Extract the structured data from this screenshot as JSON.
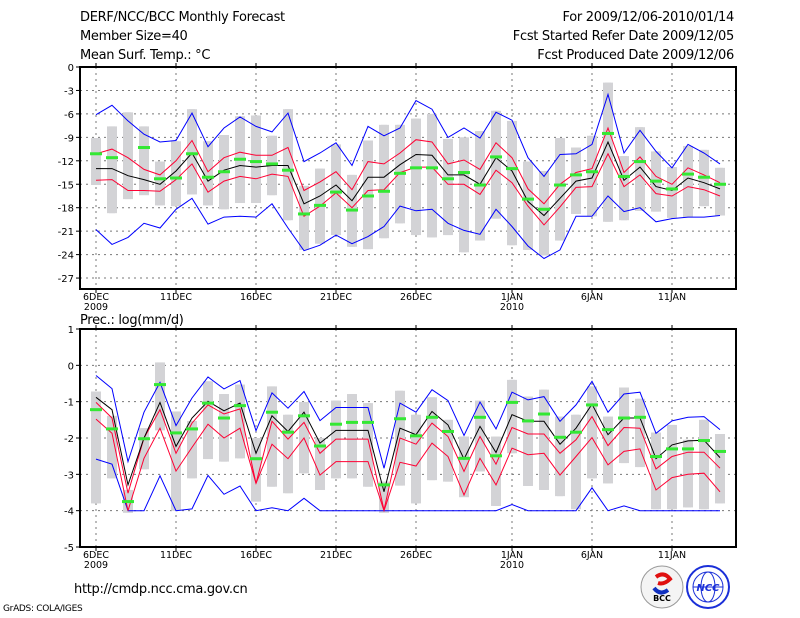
{
  "header": {
    "title": "DERF/NCC/BCC Monthly Forecast",
    "member_size": "Member Size=40",
    "period": "For 2009/12/06-2010/01/14",
    "started": "Fcst Started Refer Date 2009/12/05",
    "produced": "Fcst Produced Date 2009/12/06"
  },
  "footer": {
    "url": "http://cmdp.ncc.cma.gov.cn",
    "credit": "GrADS: COLA/IGES",
    "logos": [
      "BCC",
      "NCC"
    ]
  },
  "colors": {
    "extreme": "#0000ff",
    "quartile": "#ff0033",
    "median": "#000000",
    "observed": "#33e833",
    "spread": "#d3d3d6"
  },
  "chart_data": [
    {
      "type": "line",
      "title": "Mean Surf. Temp.: °C",
      "xlabel": "",
      "ylabel": "°C",
      "ylim": [
        -28,
        0
      ],
      "yticks": [
        0,
        -3,
        -6,
        -9,
        -12,
        -15,
        -18,
        -21,
        -24,
        -27
      ],
      "xticks": [
        {
          "day": 0,
          "label": "6DEC",
          "sub": "2009"
        },
        {
          "day": 5,
          "label": "11DEC"
        },
        {
          "day": 10,
          "label": "16DEC"
        },
        {
          "day": 15,
          "label": "21DEC"
        },
        {
          "day": 20,
          "label": "26DEC"
        },
        {
          "day": 26,
          "label": "1JAN",
          "sub": "2010"
        },
        {
          "day": 31,
          "label": "6JAN"
        },
        {
          "day": 36,
          "label": "11JAN"
        }
      ],
      "grid": true,
      "x": "days 2009/12/06 - 2010/01/14 (0-39)",
      "series": [
        {
          "name": "max",
          "kind": "extreme",
          "values": [
            -6.1,
            -4.9,
            -6.9,
            -8.6,
            -9.6,
            -9.4,
            -5.9,
            -10.2,
            -7.8,
            -6.4,
            -7.6,
            -8.3,
            -5.9,
            -12.1,
            -11.0,
            -9.7,
            -12.6,
            -7.6,
            -8.8,
            -7.8,
            -4.3,
            -5.4,
            -9.0,
            -7.8,
            -9.1,
            -5.8,
            -6.8,
            -11.6,
            -14.0,
            -11.2,
            -11.1,
            -9.9,
            -3.5,
            -11.0,
            -8.1,
            -10.8,
            -12.9,
            -9.9,
            -11.0,
            -12.4
          ]
        },
        {
          "name": "upper",
          "kind": "quartile",
          "values": [
            -11.1,
            -10.5,
            -11.6,
            -13.1,
            -13.8,
            -12.0,
            -9.4,
            -13.4,
            -11.6,
            -10.9,
            -11.3,
            -11.3,
            -10.3,
            -15.8,
            -14.7,
            -13.4,
            -15.7,
            -12.1,
            -12.4,
            -11.0,
            -9.3,
            -9.6,
            -12.4,
            -11.9,
            -13.1,
            -9.7,
            -11.6,
            -15.6,
            -17.5,
            -15.0,
            -13.5,
            -13.0,
            -7.8,
            -13.5,
            -11.5,
            -14.0,
            -15.0,
            -12.9,
            -13.8,
            -14.8
          ]
        },
        {
          "name": "mean",
          "kind": "median",
          "values": [
            -13.0,
            -13.0,
            -13.9,
            -14.4,
            -15.0,
            -13.3,
            -11.0,
            -14.6,
            -13.2,
            -12.6,
            -12.8,
            -12.6,
            -12.6,
            -17.5,
            -16.5,
            -15.1,
            -17.1,
            -14.1,
            -14.1,
            -12.5,
            -11.2,
            -11.3,
            -13.8,
            -13.8,
            -15.0,
            -11.6,
            -13.3,
            -17.2,
            -19.0,
            -16.8,
            -14.6,
            -14.2,
            -9.6,
            -14.5,
            -12.8,
            -15.3,
            -15.8,
            -14.2,
            -14.8,
            -15.6
          ]
        },
        {
          "name": "lower",
          "kind": "quartile",
          "values": [
            -14.5,
            -14.4,
            -15.8,
            -15.8,
            -15.9,
            -14.4,
            -12.4,
            -16.0,
            -14.6,
            -14.0,
            -14.3,
            -13.7,
            -14.0,
            -19.1,
            -17.8,
            -16.1,
            -18.0,
            -15.8,
            -15.7,
            -13.5,
            -12.8,
            -12.8,
            -15.0,
            -15.0,
            -16.3,
            -13.2,
            -14.8,
            -17.8,
            -20.2,
            -17.9,
            -15.4,
            -15.3,
            -11.1,
            -15.3,
            -13.8,
            -16.2,
            -16.5,
            -15.3,
            -15.7,
            -16.5
          ]
        },
        {
          "name": "min",
          "kind": "extreme",
          "values": [
            -20.8,
            -22.7,
            -21.8,
            -20.0,
            -20.6,
            -18.2,
            -16.8,
            -20.1,
            -19.2,
            -19.1,
            -19.2,
            -17.5,
            -20.6,
            -23.5,
            -22.8,
            -21.5,
            -22.6,
            -21.7,
            -20.4,
            -17.8,
            -18.4,
            -18.2,
            -20.0,
            -20.9,
            -21.4,
            -18.2,
            -20.4,
            -22.9,
            -24.5,
            -23.4,
            -19.1,
            -19.1,
            -16.5,
            -18.5,
            -18.0,
            -19.8,
            -19.4,
            -19.2,
            -19.2,
            -19.0
          ]
        },
        {
          "name": "observed",
          "kind": "observed",
          "values": [
            -11.1,
            -11.6,
            null,
            -10.3,
            -14.3,
            -14.2,
            -11.1,
            -14.1,
            -13.4,
            -11.8,
            -12.1,
            -12.4,
            -13.2,
            -18.8,
            -17.7,
            -16.0,
            -18.3,
            -16.5,
            -15.9,
            -13.6,
            -12.9,
            -12.9,
            -14.3,
            -13.5,
            -15.1,
            -11.5,
            -13.0,
            -16.9,
            -18.2,
            -15.1,
            -13.8,
            -13.4,
            -8.5,
            -14.0,
            -12.1,
            -14.6,
            -15.6,
            -13.7,
            -14.1,
            -15.0
          ]
        },
        {
          "name": "spread_hi",
          "kind": "spread",
          "values": [
            -9.1,
            -7.6,
            -5.8,
            -7.6,
            -12.1,
            -9.5,
            -5.4,
            -9.5,
            -8.7,
            -6.3,
            -6.2,
            -8.8,
            -5.4,
            -17.4,
            -13.0,
            -9.9,
            -13.8,
            -9.4,
            -7.4,
            -7.4,
            -6.6,
            -6.0,
            -9.2,
            -9.0,
            -8.2,
            -5.6,
            -6.9,
            -12.1,
            -13.3,
            -9.1,
            -10.3,
            -8.8,
            -2.0,
            -11.4,
            -7.7,
            -10.8,
            -12.8,
            -10.1,
            -10.6,
            -12.9
          ]
        },
        {
          "name": "spread_lo",
          "kind": "spread",
          "values": [
            -14.2,
            -18.7,
            -16.9,
            -14.0,
            -17.7,
            -17.8,
            -16.3,
            -17.7,
            -18.2,
            -17.4,
            -17.4,
            -16.4,
            -19.6,
            -23.4,
            -22.6,
            -21.5,
            -23.0,
            -23.3,
            -21.9,
            -20.0,
            -21.5,
            -21.8,
            -21.5,
            -23.7,
            -22.2,
            -19.4,
            -22.8,
            -23.4,
            -24.1,
            -22.2,
            -18.8,
            -19.1,
            -19.8,
            -19.6,
            -18.4,
            -18.5,
            -19.3,
            -19.2,
            -17.8,
            -19.0
          ]
        }
      ]
    },
    {
      "type": "line",
      "title": "Prec.: log(mm/d)",
      "xlabel": "",
      "ylabel": "log(mm/d)",
      "ylim": [
        -5,
        1
      ],
      "yticks": [
        1,
        0,
        -1,
        -2,
        -3,
        -4,
        -5
      ],
      "xticks": [
        {
          "day": 0,
          "label": "6DEC",
          "sub": "2009"
        },
        {
          "day": 5,
          "label": "11DEC"
        },
        {
          "day": 10,
          "label": "16DEC"
        },
        {
          "day": 15,
          "label": "21DEC"
        },
        {
          "day": 20,
          "label": "26DEC"
        },
        {
          "day": 26,
          "label": "1JAN",
          "sub": "2010"
        },
        {
          "day": 31,
          "label": "6JAN"
        },
        {
          "day": 36,
          "label": "11JAN"
        }
      ],
      "grid": true,
      "x": "days 2009/12/06 - 2010/01/14 (0-39)",
      "series": [
        {
          "name": "max",
          "kind": "extreme",
          "values": [
            -0.28,
            -0.64,
            -2.65,
            -1.29,
            -0.47,
            -1.66,
            -0.9,
            -0.32,
            -0.65,
            -0.42,
            -1.8,
            -0.76,
            -1.18,
            -0.72,
            -1.52,
            -1.16,
            -1.16,
            -1.16,
            -2.83,
            -1.04,
            -1.29,
            -0.67,
            -0.97,
            -1.93,
            -1.01,
            -1.75,
            -0.74,
            -0.95,
            -0.86,
            -1.54,
            -1.09,
            -0.44,
            -1.29,
            -0.79,
            -0.74,
            -1.87,
            -1.53,
            -1.43,
            -1.41,
            -1.77
          ]
        },
        {
          "name": "upper",
          "kind": "quartile",
          "values": [
            -1.02,
            -1.45,
            -3.52,
            -2.0,
            -1.22,
            -2.42,
            -1.59,
            -1.09,
            -1.34,
            -1.2,
            -3.25,
            -1.54,
            -2.03,
            -1.57,
            -2.42,
            -2.03,
            -2.03,
            -2.03,
            -3.98,
            -2.0,
            -2.17,
            -1.59,
            -1.96,
            -2.92,
            -1.96,
            -2.72,
            -1.71,
            -1.89,
            -1.89,
            -2.42,
            -2.05,
            -1.41,
            -2.21,
            -1.71,
            -1.73,
            -2.85,
            -2.51,
            -2.39,
            -2.39,
            -2.83
          ]
        },
        {
          "name": "mean",
          "kind": "median",
          "values": [
            -0.88,
            -1.22,
            -3.29,
            -2.0,
            -1.02,
            -2.23,
            -1.45,
            -0.99,
            -1.25,
            -1.04,
            -2.42,
            -1.39,
            -1.82,
            -1.29,
            -2.14,
            -1.79,
            -1.79,
            -1.79,
            -3.48,
            -1.73,
            -1.91,
            -1.27,
            -1.64,
            -2.58,
            -1.68,
            -2.4,
            -1.36,
            -1.54,
            -1.54,
            -2.17,
            -1.73,
            -1.07,
            -1.91,
            -1.45,
            -1.45,
            -2.57,
            -2.19,
            -2.08,
            -2.06,
            -2.54
          ]
        },
        {
          "name": "lower",
          "kind": "quartile",
          "values": [
            -1.48,
            -1.87,
            -4.0,
            -2.56,
            -1.73,
            -2.91,
            -2.26,
            -1.62,
            -2.0,
            -1.73,
            -3.25,
            -2.17,
            -2.57,
            -2.0,
            -3.02,
            -2.65,
            -2.65,
            -2.65,
            -4.0,
            -2.67,
            -2.77,
            -2.14,
            -2.51,
            -3.57,
            -2.56,
            -3.29,
            -2.28,
            -2.46,
            -2.42,
            -3.02,
            -2.51,
            -1.99,
            -2.74,
            -2.37,
            -2.3,
            -3.43,
            -3.09,
            -3.0,
            -2.97,
            -3.48
          ]
        },
        {
          "name": "min",
          "kind": "extreme",
          "values": [
            -2.58,
            -2.72,
            -4.0,
            -4.0,
            -3.04,
            -4.0,
            -3.95,
            -3.03,
            -3.55,
            -3.32,
            -4.0,
            -3.92,
            -4.0,
            -3.66,
            -4.0,
            -4.0,
            -4.0,
            -4.0,
            -4.0,
            -4.0,
            -4.0,
            -4.0,
            -4.0,
            -4.0,
            -4.0,
            -4.0,
            -3.83,
            -4.0,
            -4.0,
            -4.0,
            -4.0,
            -3.37,
            -4.0,
            -3.87,
            -4.0,
            -4.0,
            -4.0,
            -4.0,
            -4.0,
            -4.0
          ]
        },
        {
          "name": "observed",
          "kind": "observed",
          "values": [
            -1.22,
            -1.75,
            -3.75,
            -2.02,
            -0.53,
            -1.86,
            -1.75,
            -1.04,
            -1.45,
            -1.11,
            -2.57,
            -1.29,
            -1.84,
            -1.39,
            -2.22,
            -1.62,
            -1.57,
            -1.57,
            -3.29,
            -1.47,
            -1.94,
            -1.43,
            -1.82,
            -2.56,
            -1.43,
            -2.49,
            -1.02,
            -1.53,
            -1.34,
            -1.98,
            -1.84,
            -1.09,
            -1.77,
            -1.45,
            -1.43,
            -2.51,
            -2.3,
            -2.3,
            -2.07,
            -2.37
          ]
        },
        {
          "name": "spread_hi",
          "kind": "spread",
          "values": [
            -0.72,
            -1.64,
            -3.43,
            -1.73,
            0.08,
            -1.27,
            -1.66,
            -0.44,
            -0.79,
            -0.53,
            -2.0,
            -0.58,
            -1.36,
            -1.01,
            -2.0,
            -0.97,
            -0.79,
            -1.04,
            -3.2,
            -0.7,
            -1.36,
            -0.88,
            -1.5,
            -1.96,
            -0.97,
            -1.96,
            -0.4,
            -0.86,
            -0.67,
            -1.41,
            -1.36,
            -0.58,
            -1.41,
            -0.61,
            -0.92,
            -1.85,
            -1.64,
            -2.05,
            -1.5,
            -1.89
          ]
        },
        {
          "name": "spread_lo",
          "kind": "spread",
          "values": [
            -3.8,
            -3.11,
            -3.94,
            -2.86,
            -1.31,
            -4.0,
            -3.11,
            -2.58,
            -2.65,
            -2.56,
            -3.75,
            -3.34,
            -3.52,
            -2.97,
            -3.43,
            -3.11,
            -3.11,
            -3.34,
            -3.89,
            -3.31,
            -3.8,
            -3.16,
            -3.2,
            -3.57,
            -2.92,
            -3.87,
            -2.42,
            -3.32,
            -3.43,
            -3.6,
            -3.96,
            -3.11,
            -3.25,
            -2.69,
            -2.8,
            -3.96,
            -3.96,
            -3.91,
            -3.96,
            -3.8
          ]
        }
      ]
    }
  ]
}
